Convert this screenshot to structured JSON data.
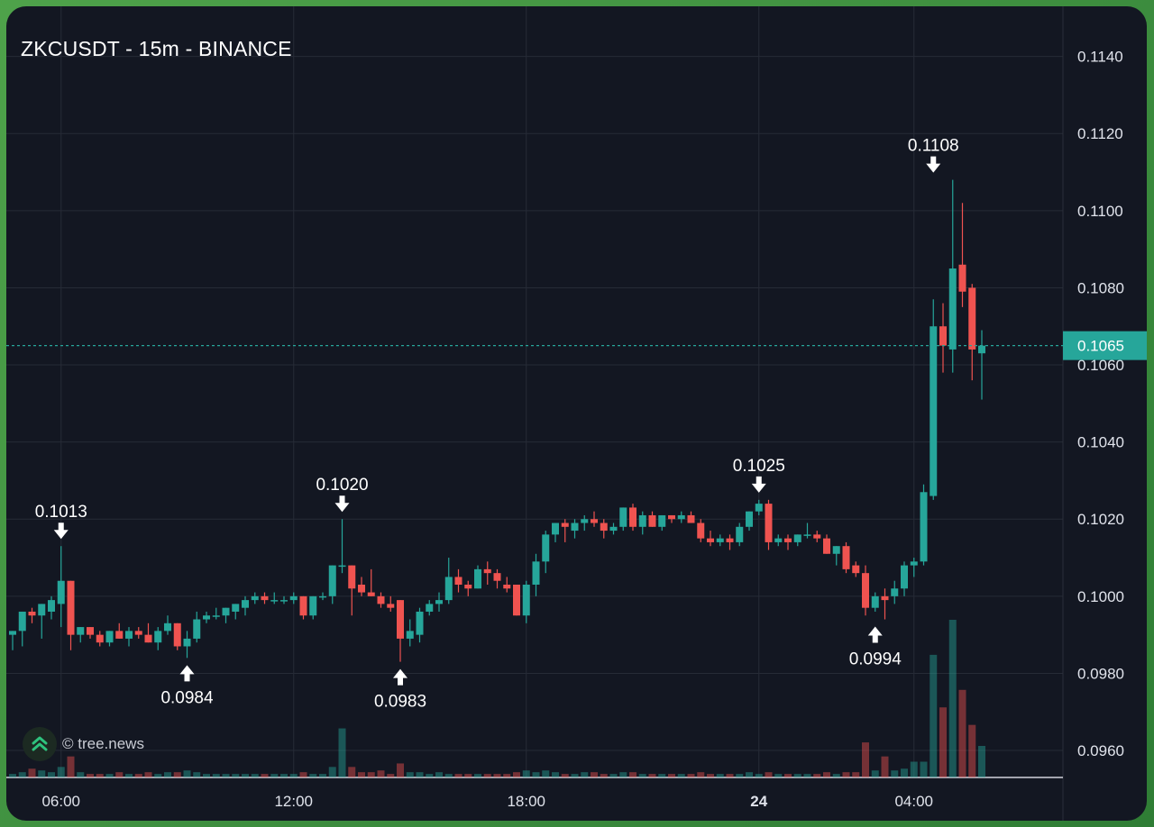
{
  "title": "ZKCUSDT - 15m - BINANCE",
  "watermark": "© tree.news",
  "colors": {
    "background": "#131722",
    "grid": "#262b36",
    "up": "#26a69a",
    "down": "#ef5350",
    "text": "#ffffff",
    "price_line": "#26a69a"
  },
  "chart_data": {
    "type": "candlestick",
    "interval": "15m",
    "x_ticks": [
      {
        "label": "06:00",
        "index": 5,
        "bold": false
      },
      {
        "label": "12:00",
        "index": 29,
        "bold": false
      },
      {
        "label": "18:00",
        "index": 53,
        "bold": false
      },
      {
        "label": "24",
        "index": 77,
        "bold": true
      },
      {
        "label": "04:00",
        "index": 93,
        "bold": false
      }
    ],
    "y_ticks": [
      "0.1140",
      "0.1120",
      "0.1100",
      "0.1080",
      "0.1060",
      "0.1040",
      "0.1020",
      "0.1000",
      "0.0980",
      "0.0960"
    ],
    "ylim": [
      0.0953,
      0.1153
    ],
    "last_price": "0.1065",
    "annotations": [
      {
        "label": "0.1013",
        "index": 5,
        "price": 0.1013,
        "kind": "high"
      },
      {
        "label": "0.0984",
        "index": 18,
        "price": 0.0984,
        "kind": "low"
      },
      {
        "label": "0.1020",
        "index": 34,
        "price": 0.102,
        "kind": "high"
      },
      {
        "label": "0.0983",
        "index": 40,
        "price": 0.0983,
        "kind": "low"
      },
      {
        "label": "0.1025",
        "index": 77,
        "price": 0.1025,
        "kind": "high"
      },
      {
        "label": "0.0994",
        "index": 89,
        "price": 0.0994,
        "kind": "low"
      },
      {
        "label": "0.1108",
        "index": 95,
        "price": 0.1108,
        "kind": "high"
      }
    ],
    "candles": [
      [
        0.099,
        0.0991,
        0.0986,
        0.0991,
        2
      ],
      [
        0.0991,
        0.0996,
        0.0987,
        0.0996,
        3
      ],
      [
        0.0996,
        0.0997,
        0.0993,
        0.0995,
        5
      ],
      [
        0.0995,
        0.0998,
        0.0989,
        0.0998,
        4
      ],
      [
        0.0996,
        0.1,
        0.0994,
        0.0999,
        3
      ],
      [
        0.0998,
        0.1013,
        0.0992,
        0.1004,
        6
      ],
      [
        0.1004,
        0.1004,
        0.0986,
        0.099,
        12
      ],
      [
        0.099,
        0.0992,
        0.0988,
        0.0992,
        3
      ],
      [
        0.0992,
        0.0992,
        0.0989,
        0.099,
        2
      ],
      [
        0.099,
        0.0991,
        0.0987,
        0.0988,
        2
      ],
      [
        0.0988,
        0.0991,
        0.0987,
        0.0991,
        2
      ],
      [
        0.0991,
        0.0993,
        0.0989,
        0.0989,
        3
      ],
      [
        0.0989,
        0.0992,
        0.0987,
        0.0991,
        2
      ],
      [
        0.0991,
        0.0992,
        0.0989,
        0.099,
        2
      ],
      [
        0.099,
        0.0993,
        0.0988,
        0.0988,
        3
      ],
      [
        0.0988,
        0.0992,
        0.0986,
        0.0991,
        2
      ],
      [
        0.0991,
        0.0995,
        0.099,
        0.0993,
        3
      ],
      [
        0.0993,
        0.0993,
        0.0986,
        0.0987,
        3
      ],
      [
        0.0987,
        0.0991,
        0.0984,
        0.0989,
        4
      ],
      [
        0.0989,
        0.0996,
        0.0988,
        0.0994,
        3
      ],
      [
        0.0994,
        0.0996,
        0.0993,
        0.0995,
        2
      ],
      [
        0.0995,
        0.0997,
        0.0994,
        0.0995,
        2
      ],
      [
        0.0995,
        0.0997,
        0.0993,
        0.0997,
        2
      ],
      [
        0.0996,
        0.0998,
        0.0994,
        0.0998,
        2
      ],
      [
        0.0997,
        0.1,
        0.0995,
        0.0999,
        2
      ],
      [
        0.0999,
        0.1001,
        0.0998,
        0.1,
        2
      ],
      [
        0.1,
        0.1001,
        0.0998,
        0.0999,
        2
      ],
      [
        0.0999,
        0.1001,
        0.0998,
        0.0999,
        2
      ],
      [
        0.0999,
        0.1,
        0.0998,
        0.0999,
        2
      ],
      [
        0.0999,
        0.1001,
        0.0998,
        0.1,
        2
      ],
      [
        0.1,
        0.1,
        0.0994,
        0.0995,
        3
      ],
      [
        0.0995,
        0.1,
        0.0994,
        0.1,
        2
      ],
      [
        0.1,
        0.1001,
        0.0999,
        0.1,
        2
      ],
      [
        0.1,
        0.1008,
        0.0998,
        0.1008,
        6
      ],
      [
        0.1008,
        0.102,
        0.1006,
        0.1008,
        28
      ],
      [
        0.1008,
        0.1008,
        0.0995,
        0.1002,
        6
      ],
      [
        0.1003,
        0.1005,
        0.1,
        0.1001,
        3
      ],
      [
        0.1001,
        0.1007,
        0.1,
        0.1,
        3
      ],
      [
        0.1,
        0.1001,
        0.0997,
        0.0998,
        4
      ],
      [
        0.0998,
        0.1,
        0.0996,
        0.0997,
        2
      ],
      [
        0.0999,
        0.0999,
        0.0983,
        0.0989,
        8
      ],
      [
        0.0989,
        0.0994,
        0.0987,
        0.0991,
        3
      ],
      [
        0.099,
        0.0997,
        0.0988,
        0.0996,
        3
      ],
      [
        0.0996,
        0.0999,
        0.0995,
        0.0998,
        2
      ],
      [
        0.0998,
        0.1001,
        0.0996,
        0.0999,
        3
      ],
      [
        0.0999,
        0.101,
        0.0998,
        0.1005,
        2
      ],
      [
        0.1005,
        0.1007,
        0.1001,
        0.1003,
        2
      ],
      [
        0.1003,
        0.1004,
        0.1,
        0.1002,
        2
      ],
      [
        0.1002,
        0.1008,
        0.1002,
        0.1007,
        2
      ],
      [
        0.1007,
        0.1009,
        0.1003,
        0.1006,
        2
      ],
      [
        0.1006,
        0.1007,
        0.1002,
        0.1004,
        2
      ],
      [
        0.1003,
        0.1005,
        0.1001,
        0.1002,
        2
      ],
      [
        0.1003,
        0.1003,
        0.0995,
        0.0995,
        3
      ],
      [
        0.0995,
        0.1004,
        0.0993,
        0.1003,
        4
      ],
      [
        0.1003,
        0.1011,
        0.1,
        0.1009,
        3
      ],
      [
        0.1009,
        0.1017,
        0.1006,
        0.1016,
        4
      ],
      [
        0.1016,
        0.1019,
        0.1014,
        0.1019,
        3
      ],
      [
        0.1019,
        0.102,
        0.1014,
        0.1018,
        2
      ],
      [
        0.1017,
        0.102,
        0.1015,
        0.1019,
        2
      ],
      [
        0.1019,
        0.1021,
        0.1017,
        0.102,
        3
      ],
      [
        0.102,
        0.1022,
        0.1018,
        0.1019,
        3
      ],
      [
        0.1019,
        0.102,
        0.1015,
        0.1017,
        2
      ],
      [
        0.1017,
        0.1019,
        0.1016,
        0.1018,
        2
      ],
      [
        0.1018,
        0.1023,
        0.1017,
        0.1023,
        3
      ],
      [
        0.1023,
        0.1024,
        0.1017,
        0.1018,
        3
      ],
      [
        0.1018,
        0.1022,
        0.1016,
        0.1021,
        2
      ],
      [
        0.1021,
        0.1022,
        0.1018,
        0.1018,
        2
      ],
      [
        0.1018,
        0.1021,
        0.1017,
        0.1021,
        2
      ],
      [
        0.1021,
        0.1021,
        0.1019,
        0.102,
        2
      ],
      [
        0.102,
        0.1022,
        0.1019,
        0.1021,
        2
      ],
      [
        0.1021,
        0.1022,
        0.1019,
        0.1019,
        2
      ],
      [
        0.1019,
        0.102,
        0.1014,
        0.1015,
        3
      ],
      [
        0.1015,
        0.1017,
        0.1013,
        0.1014,
        2
      ],
      [
        0.1014,
        0.1016,
        0.1013,
        0.1015,
        2
      ],
      [
        0.1015,
        0.1016,
        0.1012,
        0.1014,
        2
      ],
      [
        0.1014,
        0.1019,
        0.1013,
        0.1018,
        2
      ],
      [
        0.1018,
        0.1022,
        0.1017,
        0.1022,
        3
      ],
      [
        0.1022,
        0.1025,
        0.1021,
        0.1024,
        2
      ],
      [
        0.1024,
        0.1025,
        0.1012,
        0.1014,
        3
      ],
      [
        0.1014,
        0.1016,
        0.1013,
        0.1015,
        2
      ],
      [
        0.1015,
        0.1016,
        0.1012,
        0.1014,
        2
      ],
      [
        0.1014,
        0.1016,
        0.1013,
        0.1016,
        2
      ],
      [
        0.1016,
        0.1019,
        0.1015,
        0.1016,
        2
      ],
      [
        0.1016,
        0.1017,
        0.1014,
        0.1015,
        2
      ],
      [
        0.1015,
        0.1016,
        0.1011,
        0.1011,
        3
      ],
      [
        0.1011,
        0.1013,
        0.1008,
        0.1013,
        2
      ],
      [
        0.1013,
        0.1014,
        0.1006,
        0.1007,
        3
      ],
      [
        0.1008,
        0.1009,
        0.1005,
        0.1006,
        3
      ],
      [
        0.1006,
        0.1008,
        0.0995,
        0.0997,
        20
      ],
      [
        0.0997,
        0.1001,
        0.0996,
        0.1,
        4
      ],
      [
        0.1,
        0.1002,
        0.0994,
        0.0999,
        12
      ],
      [
        0.1,
        0.1004,
        0.0998,
        0.1002,
        4
      ],
      [
        0.1002,
        0.1009,
        0.1,
        0.1008,
        5
      ],
      [
        0.1008,
        0.101,
        0.1005,
        0.1009,
        9
      ],
      [
        0.1009,
        0.1029,
        0.1008,
        0.1027,
        9
      ],
      [
        0.1026,
        0.1077,
        0.1025,
        0.107,
        70
      ],
      [
        0.107,
        0.1076,
        0.1058,
        0.1065,
        40
      ],
      [
        0.1064,
        0.1108,
        0.1058,
        0.1085,
        90
      ],
      [
        0.1086,
        0.1102,
        0.1075,
        0.1079,
        50
      ],
      [
        0.108,
        0.1081,
        0.1056,
        0.1064,
        30
      ],
      [
        0.1063,
        0.1069,
        0.1051,
        0.1065,
        18
      ]
    ]
  }
}
